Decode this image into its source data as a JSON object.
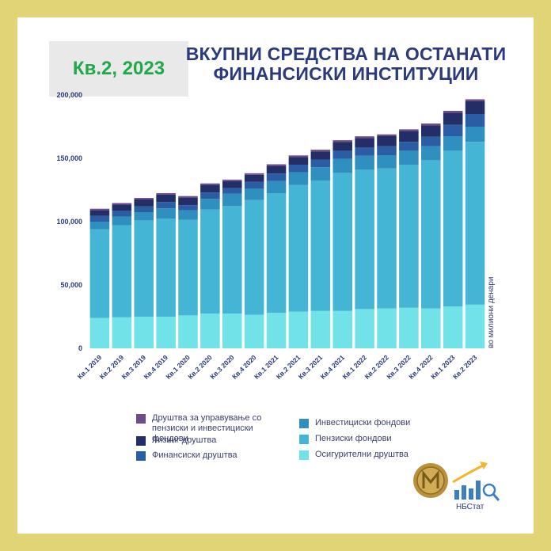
{
  "header": {
    "quarter_label": "Кв.2, 2023",
    "title_line1": "ВКУПНИ СРЕДСТВА НА ОСТАНАТИ",
    "title_line2": "ФИНАНСИСКИ ИНСТИТУЦИИ"
  },
  "unit_label": "во милиони денари",
  "brand": {
    "logo_text": "НБСтат"
  },
  "colors": {
    "background": "#e1d477",
    "title": "#2b3a7c",
    "badge_text": "#21a84a",
    "axis_text": "#2b3a7c"
  },
  "chart_data": {
    "type": "bar",
    "stacked": true,
    "title": "ВКУПНИ СРЕДСТВА НА ОСТАНАТИ ФИНАНСИСКИ ИНСТИТУЦИИ",
    "ylabel": "во милиони денари",
    "ylim": [
      0,
      200000
    ],
    "yticks": [
      0,
      50000,
      100000,
      150000,
      200000
    ],
    "ytick_labels": [
      "0",
      "50,000",
      "100,000",
      "150,000",
      "200,000"
    ],
    "grid": false,
    "legend_position": "bottom",
    "categories": [
      "Кв.1 2019",
      "Кв.2 2019",
      "Кв.3 2019",
      "Кв.4 2019",
      "Кв.1 2020",
      "Кв.2 2020",
      "Кв.3 2020",
      "Кв.4 2020",
      "Кв.1 2021",
      "Кв.2 2021",
      "Кв.3 2021",
      "Кв.4 2021",
      "Кв.1 2022",
      "Кв.2 2022",
      "Кв.3 2022",
      "Кв.4 2022",
      "Кв.1 2023",
      "Кв.2 2023"
    ],
    "series": [
      {
        "name": "Осигурителни друштва",
        "color": "#71e2e7",
        "values": [
          24000,
          24500,
          25000,
          25000,
          26000,
          27500,
          27500,
          26500,
          28000,
          29000,
          29500,
          29500,
          31000,
          31500,
          32000,
          31500,
          33000,
          34500
        ]
      },
      {
        "name": "Пензиски фондови",
        "color": "#45b5d6",
        "values": [
          70000,
          72500,
          76000,
          77500,
          75500,
          82000,
          85000,
          90500,
          94500,
          100000,
          103000,
          109000,
          110000,
          110500,
          113000,
          117000,
          123000,
          128500
        ]
      },
      {
        "name": "Инвестициски фондови",
        "color": "#2f8fbf",
        "values": [
          6000,
          7000,
          6500,
          8000,
          7500,
          8500,
          9500,
          9000,
          9500,
          10000,
          10500,
          11000,
          11000,
          10500,
          11000,
          11000,
          11500,
          12000
        ]
      },
      {
        "name": "Финансиски друштва",
        "color": "#2a5da3",
        "values": [
          4500,
          4500,
          4500,
          5000,
          4000,
          5000,
          4500,
          5500,
          6000,
          6000,
          6000,
          6500,
          6500,
          7000,
          7000,
          7500,
          9000,
          10000
        ]
      },
      {
        "name": "Лизинг друштва",
        "color": "#232d66",
        "values": [
          4500,
          5000,
          5500,
          5800,
          6000,
          6000,
          5500,
          5500,
          6000,
          6000,
          6500,
          7000,
          7500,
          8000,
          8500,
          9000,
          9500,
          10000
        ]
      },
      {
        "name": "Друштва за управување со пензиски и инвестициски фондови",
        "color": "#6e4b8b",
        "values": [
          1200,
          1200,
          1200,
          1200,
          1200,
          1200,
          1200,
          1200,
          1300,
          1300,
          1300,
          1300,
          1400,
          1400,
          1400,
          1500,
          1500,
          1600
        ]
      }
    ]
  }
}
